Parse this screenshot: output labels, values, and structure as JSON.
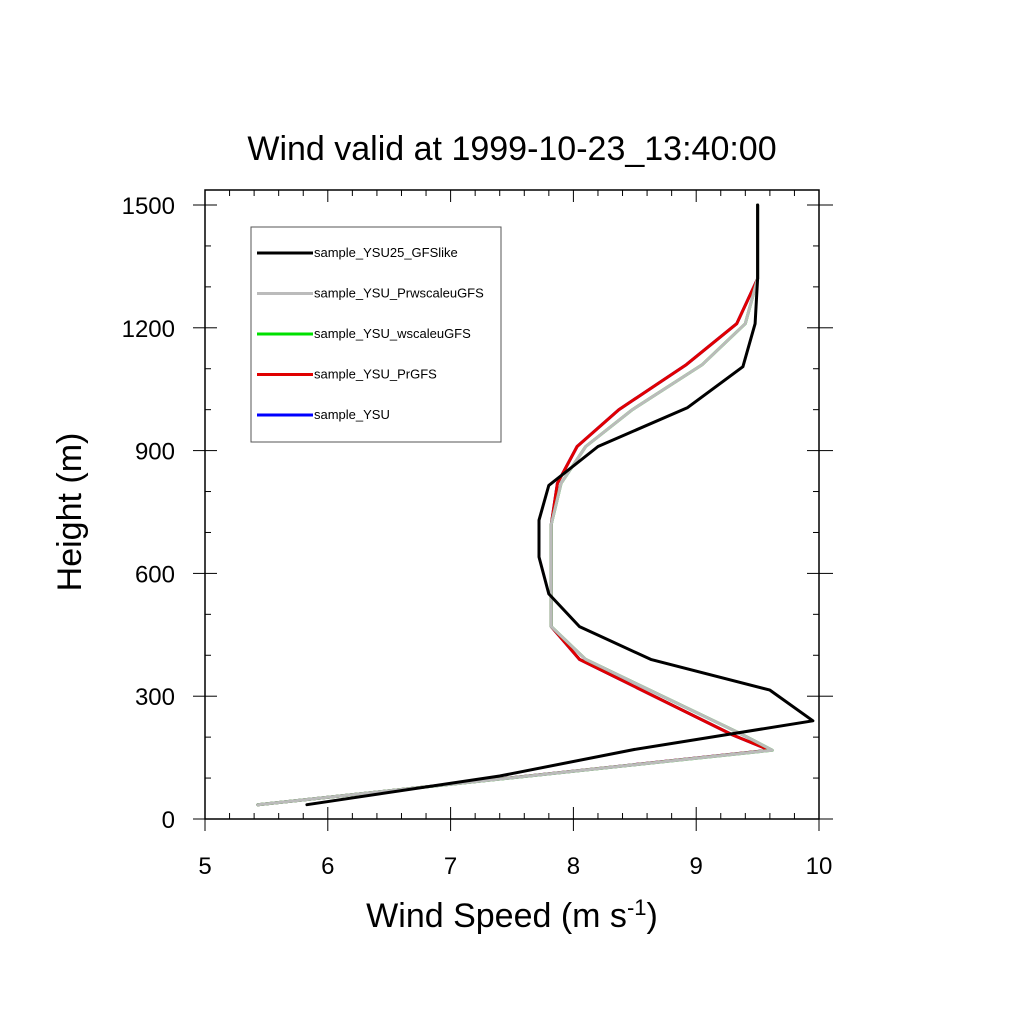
{
  "chart_data": {
    "type": "line",
    "title": "Wind valid at 1999-10-23_13:40:00",
    "xlabel": "Wind Speed (m s",
    "xlabel_sup": "-1",
    "xlabel_end": ")",
    "ylabel": "Height (m)",
    "xlim": [
      5,
      10
    ],
    "ylim": [
      0,
      1500
    ],
    "xticks": [
      5,
      6,
      7,
      8,
      9,
      10
    ],
    "yticks": [
      0,
      300,
      600,
      900,
      1200,
      1500
    ],
    "xtick_labels": [
      "5",
      "6",
      "7",
      "8",
      "9",
      "10"
    ],
    "ytick_labels": [
      "0",
      "300",
      "600",
      "900",
      "1200",
      "1500"
    ],
    "legend_position": "top-left",
    "series": [
      {
        "name": "sample_YSU",
        "color": "#0000ff",
        "points": [
          [
            5.43,
            35
          ],
          [
            9.6,
            168
          ],
          [
            9.3,
            205
          ],
          [
            8.05,
            390
          ],
          [
            7.82,
            470
          ],
          [
            7.82,
            550
          ],
          [
            7.82,
            640
          ],
          [
            7.82,
            720
          ],
          [
            7.87,
            820
          ],
          [
            8.03,
            910
          ],
          [
            8.37,
            1000
          ],
          [
            8.92,
            1110
          ],
          [
            9.33,
            1210
          ],
          [
            9.5,
            1320
          ],
          [
            9.5,
            1500
          ]
        ]
      },
      {
        "name": "sample_YSU_PrGFS",
        "color": "#e00000",
        "points": [
          [
            5.43,
            35
          ],
          [
            9.6,
            168
          ],
          [
            9.3,
            205
          ],
          [
            8.05,
            390
          ],
          [
            7.82,
            470
          ],
          [
            7.82,
            550
          ],
          [
            7.82,
            640
          ],
          [
            7.82,
            720
          ],
          [
            7.87,
            820
          ],
          [
            8.03,
            910
          ],
          [
            8.37,
            1000
          ],
          [
            8.92,
            1110
          ],
          [
            9.33,
            1210
          ],
          [
            9.5,
            1320
          ],
          [
            9.5,
            1500
          ]
        ]
      },
      {
        "name": "sample_YSU_wscaleuGFS",
        "color": "#00e000",
        "points": [
          [
            5.43,
            35
          ],
          [
            9.62,
            168
          ],
          [
            9.35,
            210
          ],
          [
            8.1,
            390
          ],
          [
            7.82,
            470
          ],
          [
            7.82,
            550
          ],
          [
            7.82,
            640
          ],
          [
            7.82,
            720
          ],
          [
            7.9,
            820
          ],
          [
            8.1,
            910
          ],
          [
            8.48,
            1000
          ],
          [
            9.05,
            1110
          ],
          [
            9.4,
            1210
          ],
          [
            9.5,
            1320
          ],
          [
            9.5,
            1500
          ]
        ]
      },
      {
        "name": "sample_YSU_PrwscaleuGFS",
        "color": "#bbbbbb",
        "points": [
          [
            5.43,
            35
          ],
          [
            9.62,
            168
          ],
          [
            9.35,
            210
          ],
          [
            8.1,
            390
          ],
          [
            7.82,
            470
          ],
          [
            7.82,
            550
          ],
          [
            7.82,
            640
          ],
          [
            7.82,
            720
          ],
          [
            7.9,
            820
          ],
          [
            8.1,
            910
          ],
          [
            8.48,
            1000
          ],
          [
            9.05,
            1110
          ],
          [
            9.4,
            1210
          ],
          [
            9.5,
            1320
          ],
          [
            9.5,
            1500
          ]
        ]
      },
      {
        "name": "sample_YSU25_GFSlike",
        "color": "#000000",
        "points": [
          [
            5.83,
            35
          ],
          [
            7.4,
            105
          ],
          [
            8.5,
            170
          ],
          [
            9.95,
            240
          ],
          [
            9.6,
            315
          ],
          [
            8.63,
            390
          ],
          [
            8.05,
            470
          ],
          [
            7.8,
            550
          ],
          [
            7.72,
            640
          ],
          [
            7.72,
            730
          ],
          [
            7.8,
            815
          ],
          [
            8.2,
            910
          ],
          [
            8.93,
            1005
          ],
          [
            9.38,
            1105
          ],
          [
            9.48,
            1210
          ],
          [
            9.5,
            1320
          ],
          [
            9.5,
            1500
          ]
        ]
      }
    ],
    "legend_order": [
      "sample_YSU25_GFSlike",
      "sample_YSU_PrwscaleuGFS",
      "sample_YSU_wscaleuGFS",
      "sample_YSU_PrGFS",
      "sample_YSU"
    ]
  }
}
